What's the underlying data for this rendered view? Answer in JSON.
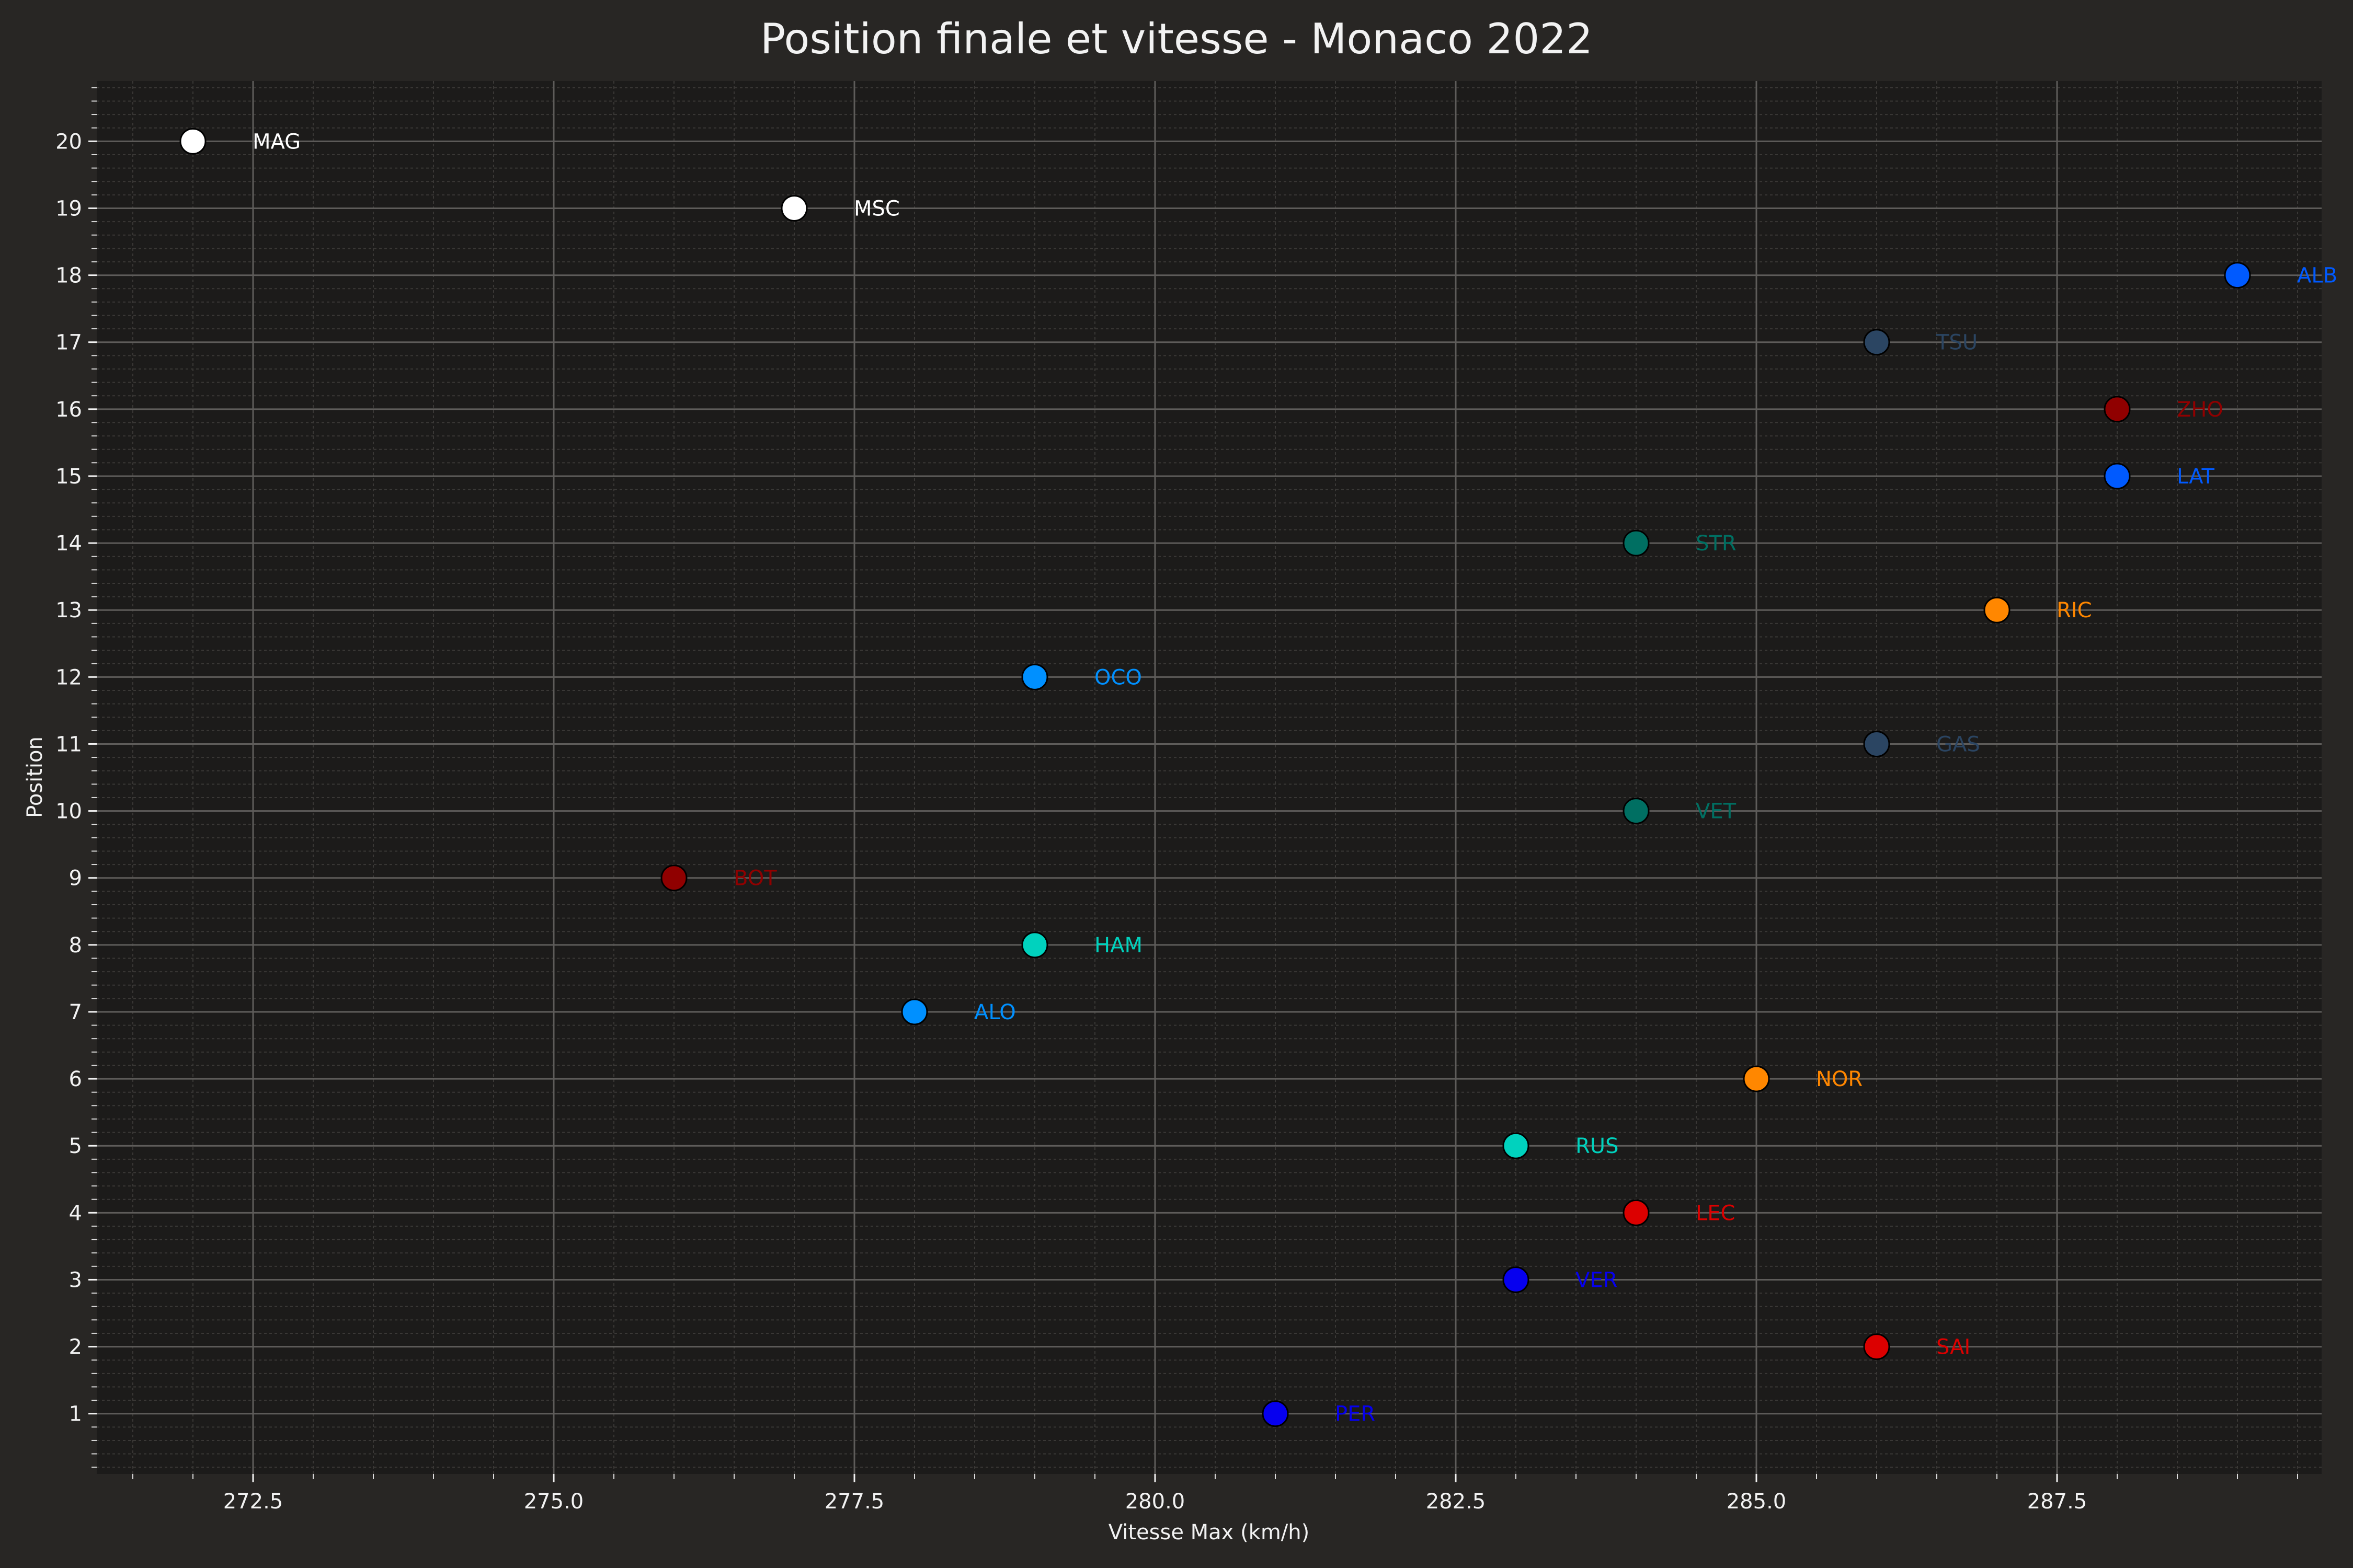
{
  "chart_data": {
    "type": "scatter",
    "title": "Position finale et vitesse - Monaco 2022",
    "xlabel": "Vitesse Max (km/h)",
    "ylabel": "Position",
    "xlim": [
      271.2,
      289.7
    ],
    "ylim": [
      0.1,
      20.9
    ],
    "xticks": [
      272.5,
      275.0,
      277.5,
      280.0,
      282.5,
      285.0,
      287.5
    ],
    "xtick_labels": [
      "272.5",
      "275.0",
      "277.5",
      "280.0",
      "282.5",
      "285.0",
      "287.5"
    ],
    "yticks": [
      1,
      2,
      3,
      4,
      5,
      6,
      7,
      8,
      9,
      10,
      11,
      12,
      13,
      14,
      15,
      16,
      17,
      18,
      19,
      20
    ],
    "grid": true,
    "background": "#1c1b1a",
    "points": [
      {
        "driver": "PER",
        "x": 281,
        "y": 1,
        "color": "#0600ef"
      },
      {
        "driver": "SAI",
        "x": 286,
        "y": 2,
        "color": "#dc0000"
      },
      {
        "driver": "VER",
        "x": 283,
        "y": 3,
        "color": "#0600ef"
      },
      {
        "driver": "LEC",
        "x": 284,
        "y": 4,
        "color": "#dc0000"
      },
      {
        "driver": "RUS",
        "x": 283,
        "y": 5,
        "color": "#00d2be"
      },
      {
        "driver": "NOR",
        "x": 285,
        "y": 6,
        "color": "#ff8700"
      },
      {
        "driver": "ALO",
        "x": 278,
        "y": 7,
        "color": "#0090ff"
      },
      {
        "driver": "HAM",
        "x": 279,
        "y": 8,
        "color": "#00d2be"
      },
      {
        "driver": "BOT",
        "x": 276,
        "y": 9,
        "color": "#900000"
      },
      {
        "driver": "VET",
        "x": 284,
        "y": 10,
        "color": "#006f62"
      },
      {
        "driver": "GAS",
        "x": 286,
        "y": 11,
        "color": "#2b4562"
      },
      {
        "driver": "OCO",
        "x": 279,
        "y": 12,
        "color": "#0090ff"
      },
      {
        "driver": "RIC",
        "x": 287,
        "y": 13,
        "color": "#ff8700"
      },
      {
        "driver": "STR",
        "x": 284,
        "y": 14,
        "color": "#006f62"
      },
      {
        "driver": "LAT",
        "x": 288,
        "y": 15,
        "color": "#005aff"
      },
      {
        "driver": "ZHO",
        "x": 288,
        "y": 16,
        "color": "#900000"
      },
      {
        "driver": "TSU",
        "x": 286,
        "y": 17,
        "color": "#2b4562"
      },
      {
        "driver": "ALB",
        "x": 289,
        "y": 18,
        "color": "#005aff"
      },
      {
        "driver": "MSC",
        "x": 277,
        "y": 19,
        "color": "#ffffff"
      },
      {
        "driver": "MAG",
        "x": 272,
        "y": 20,
        "color": "#ffffff"
      }
    ]
  }
}
